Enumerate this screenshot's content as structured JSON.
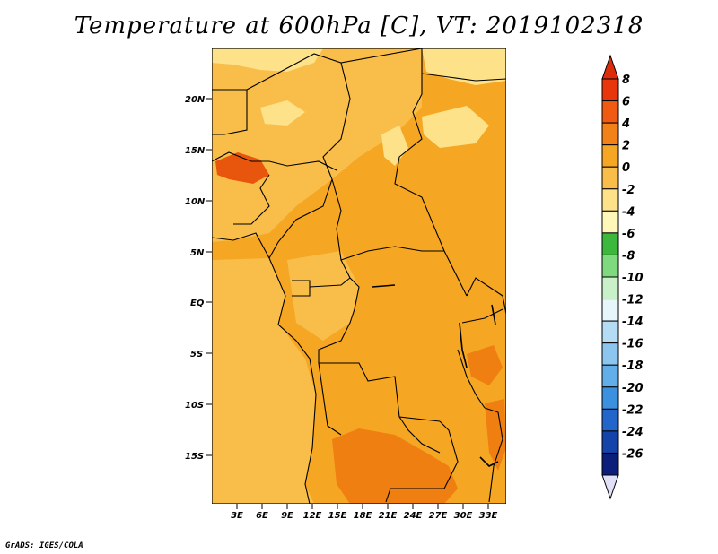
{
  "title": "Temperature at 600hPa [C], VT: 2019102318",
  "credit": "GrADS: IGES/COLA",
  "map": {
    "lat_labels": [
      "20N",
      "15N",
      "10N",
      "5N",
      "EQ",
      "5S",
      "10S",
      "15S"
    ],
    "lon_labels": [
      "3E",
      "6E",
      "9E",
      "12E",
      "15E",
      "18E",
      "21E",
      "24E",
      "27E",
      "30E",
      "33E"
    ],
    "field_colors": {
      "base": "#f5a623",
      "lighter": "#f9be4a",
      "pale": "#fde28a",
      "warm": "#f07f12",
      "hot": "#e8550c"
    }
  },
  "colorbar": {
    "labels": [
      "8",
      "6",
      "4",
      "2",
      "0",
      "-2",
      "-4",
      "-6",
      "-8",
      "-10",
      "-12",
      "-14",
      "-16",
      "-18",
      "-20",
      "-22",
      "-24",
      "-26"
    ],
    "colors": [
      "#e8350c",
      "#f05a12",
      "#f28218",
      "#f5a623",
      "#f9be4a",
      "#fde28a",
      "#fff8b8",
      "#3cb83c",
      "#7fd97f",
      "#c9f0c9",
      "#e6f6fb",
      "#b4dcf4",
      "#8cc6ef",
      "#62aee9",
      "#3c90e0",
      "#2266cc",
      "#1444aa",
      "#0a1e7a"
    ],
    "over_color": "#dc2d0a",
    "under_color": "#e0e0f8"
  }
}
